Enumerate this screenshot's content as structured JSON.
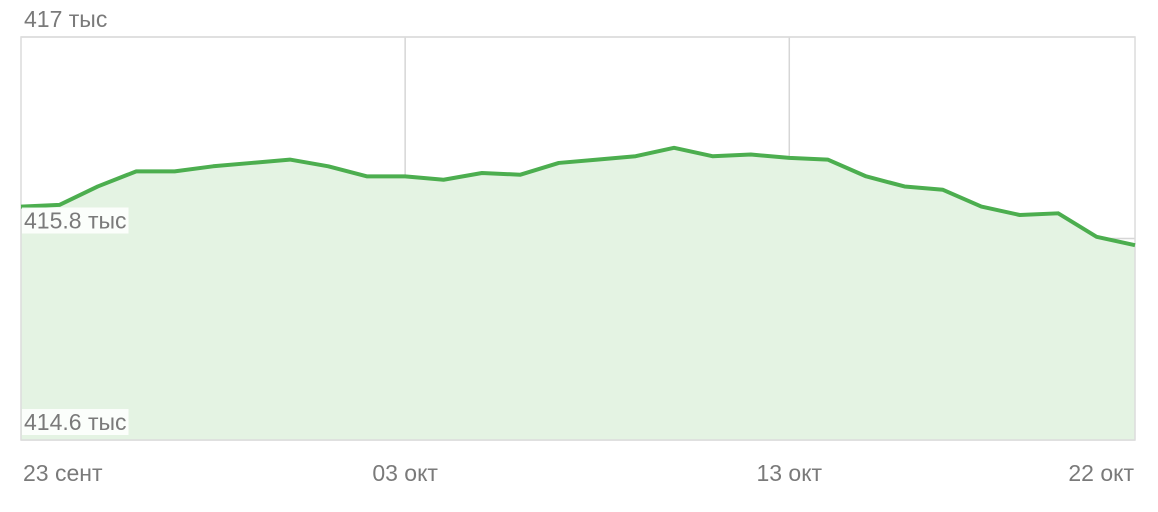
{
  "chart_data": {
    "type": "line",
    "categories": [
      "23 сент",
      null,
      null,
      null,
      null,
      null,
      null,
      null,
      null,
      null,
      "03 окт",
      null,
      null,
      null,
      null,
      null,
      null,
      null,
      null,
      null,
      "13 окт",
      null,
      null,
      null,
      null,
      null,
      null,
      null,
      null,
      "22 окт"
    ],
    "series": [
      {
        "color": "#4cae4f",
        "fill": "#e4f3e3",
        "values": [
          415.99,
          416.0,
          416.11,
          416.2,
          416.2,
          416.23,
          416.25,
          416.27,
          416.23,
          416.17,
          416.17,
          416.15,
          416.19,
          416.18,
          416.25,
          416.27,
          416.29,
          416.34,
          416.29,
          416.3,
          416.28,
          416.27,
          416.17,
          416.11,
          416.09,
          415.99,
          415.94,
          415.95,
          415.81,
          415.76
        ]
      }
    ],
    "ylim": [
      414.6,
      417
    ],
    "yticks": [
      {
        "value": 414.6,
        "label": "414.6 тыс"
      },
      {
        "value": 415.8,
        "label": "415.8 тыс"
      },
      {
        "value": 417,
        "label": "417 тыс"
      }
    ],
    "grid": true
  }
}
